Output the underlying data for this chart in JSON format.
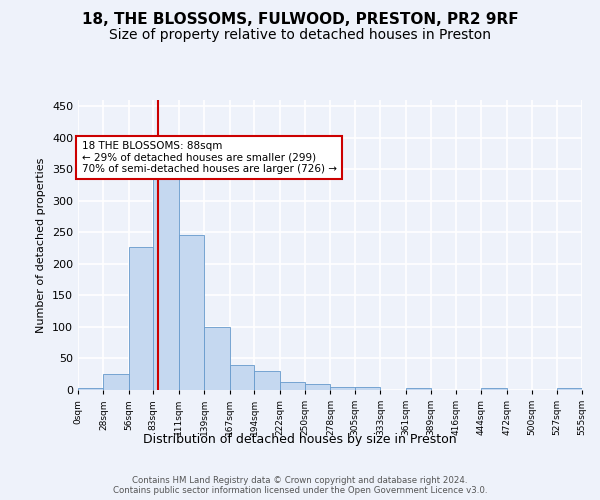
{
  "title1": "18, THE BLOSSOMS, FULWOOD, PRESTON, PR2 9RF",
  "title2": "Size of property relative to detached houses in Preston",
  "xlabel": "Distribution of detached houses by size in Preston",
  "ylabel": "Number of detached properties",
  "bin_edges": [
    0,
    28,
    56,
    83,
    111,
    139,
    167,
    194,
    222,
    250,
    278,
    305,
    333,
    361,
    389,
    416,
    444,
    472,
    500,
    527,
    555
  ],
  "bar_heights": [
    3,
    25,
    227,
    347,
    246,
    100,
    40,
    30,
    13,
    10,
    4,
    4,
    0,
    3,
    0,
    0,
    3,
    0,
    0,
    3
  ],
  "bar_color": "#c5d8f0",
  "bar_edge_color": "#6699cc",
  "property_size": 88,
  "red_line_color": "#cc0000",
  "annotation_text": "18 THE BLOSSOMS: 88sqm\n← 29% of detached houses are smaller (299)\n70% of semi-detached houses are larger (726) →",
  "annotation_box_facecolor": "#ffffff",
  "annotation_box_edgecolor": "#cc0000",
  "ylim": [
    0,
    460
  ],
  "yticks": [
    0,
    50,
    100,
    150,
    200,
    250,
    300,
    350,
    400,
    450
  ],
  "tick_labels": [
    "0sqm",
    "28sqm",
    "56sqm",
    "83sqm",
    "111sqm",
    "139sqm",
    "167sqm",
    "194sqm",
    "222sqm",
    "250sqm",
    "278sqm",
    "305sqm",
    "333sqm",
    "361sqm",
    "389sqm",
    "416sqm",
    "444sqm",
    "472sqm",
    "500sqm",
    "527sqm",
    "555sqm"
  ],
  "footer_text": "Contains HM Land Registry data © Crown copyright and database right 2024.\nContains public sector information licensed under the Open Government Licence v3.0.",
  "bg_color": "#eef2fa",
  "grid_color": "#ffffff",
  "title1_fontsize": 11,
  "title2_fontsize": 10
}
